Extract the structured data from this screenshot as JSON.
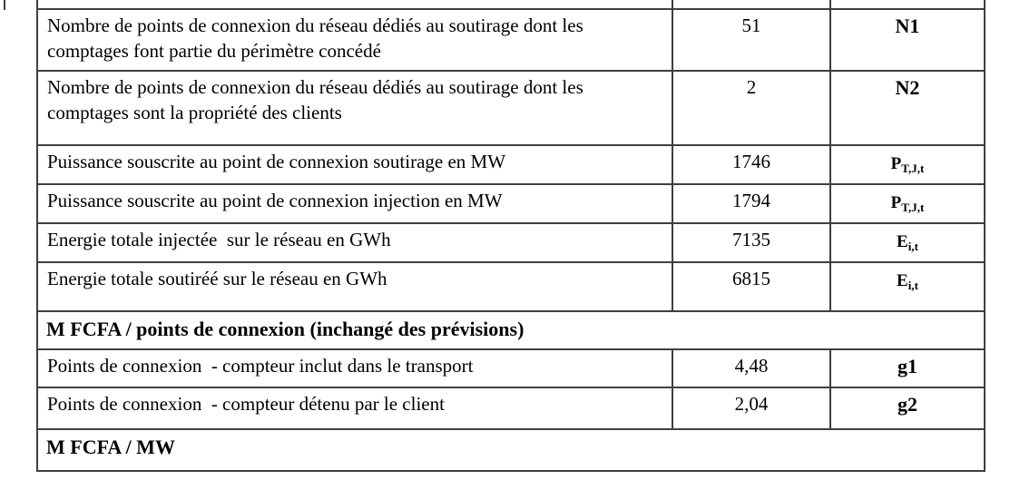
{
  "table": {
    "rows": [
      {
        "type": "data",
        "label": "Nombre de points de connexion du réseau dédiés au soutirage dont les comptages font partie du périmètre concédé",
        "value": "51",
        "symbol": "N1"
      },
      {
        "type": "data",
        "label": "Nombre de points de connexion du réseau dédiés au soutirage dont les comptages sont la propriété des clients",
        "value": "2",
        "symbol": "N2"
      },
      {
        "type": "data",
        "label": "Puissance souscrite au point de connexion soutirage en MW",
        "value": "1746",
        "symbol_base": "P",
        "symbol_sub": "T,J,t"
      },
      {
        "type": "data",
        "label": "Puissance souscrite au point de connexion injection en MW",
        "value": "1794",
        "symbol_base": "P",
        "symbol_sub": "T,J,t"
      },
      {
        "type": "data",
        "label": "Energie totale injectée  sur le réseau en GWh",
        "value": "7135",
        "symbol_base": "E",
        "symbol_sub": "i,t"
      },
      {
        "type": "data",
        "label": "Energie totale soutiréé sur le réseau en GWh",
        "value": "6815",
        "symbol_base": "E",
        "symbol_sub": "i,t"
      },
      {
        "type": "section",
        "label": "M FCFA / points de connexion (inchangé des prévisions)"
      },
      {
        "type": "data",
        "label": "Points de connexion  - compteur inclut dans le transport",
        "value": "4,48",
        "symbol": "g1"
      },
      {
        "type": "data",
        "label": "Points de connexion  - compteur détenu par le client",
        "value": "2,04",
        "symbol": "g2"
      },
      {
        "type": "section",
        "label": "M FCFA / MW"
      }
    ]
  }
}
